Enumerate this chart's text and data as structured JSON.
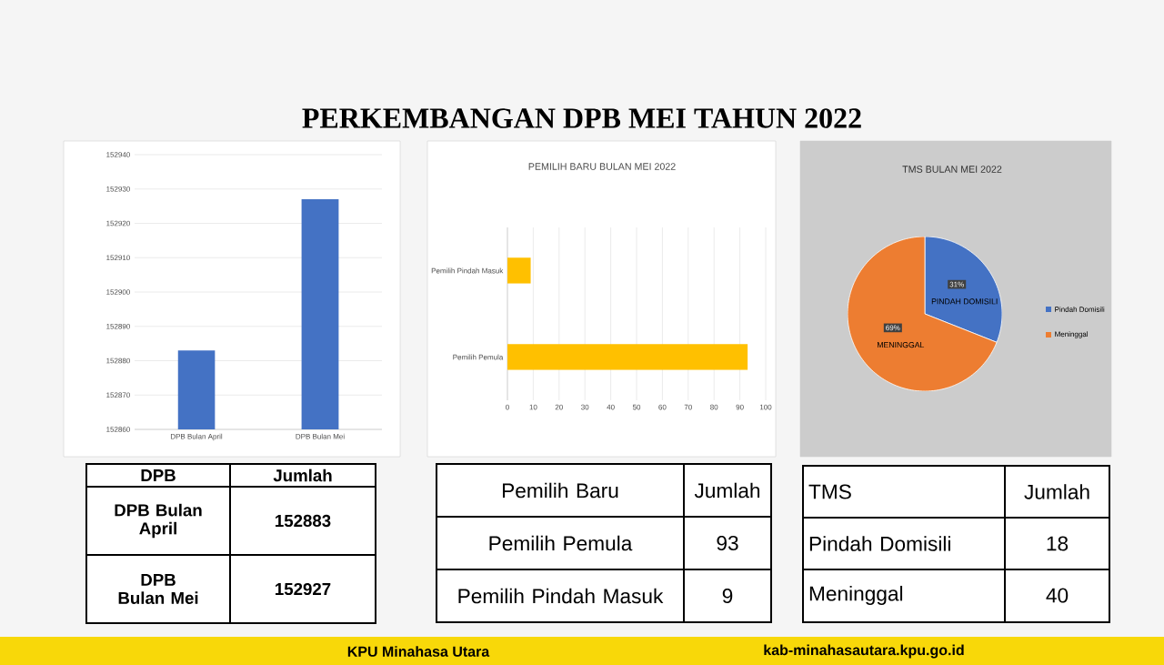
{
  "chart_data": [
    {
      "type": "bar",
      "title": "PERKEMBANGAN DPB MEI TAHUN 2022",
      "categories": [
        "DPB Bulan April",
        "DPB Bulan Mei"
      ],
      "values": [
        152883,
        152927
      ],
      "color": "#4472c4",
      "ylim": [
        152860,
        152940
      ],
      "yticks": [
        152860,
        152870,
        152880,
        152890,
        152900,
        152910,
        152920,
        152930,
        152940
      ],
      "grid": "y",
      "annotations": [
        "KPU Minahasa Utara",
        "kab-minahasautara.kpu.go.id"
      ]
    },
    {
      "type": "bar",
      "orientation": "horizontal",
      "title": "PEMILIH BARU BULAN MEI 2022",
      "categories": [
        "Pemilih Pindah Masuk",
        "Pemilih Pemula"
      ],
      "values": [
        9,
        93
      ],
      "color": "#ffc000",
      "xlim": [
        0,
        100
      ],
      "xticks": [
        0,
        10,
        20,
        30,
        40,
        50,
        60,
        70,
        80,
        90,
        100
      ],
      "grid": "x"
    },
    {
      "type": "pie",
      "title": "TMS BULAN MEI 2022",
      "categories": [
        "Pindah Domisili",
        "Meninggal"
      ],
      "values": [
        31,
        69
      ],
      "colors": [
        "#4472c4",
        "#ed7d31"
      ],
      "value_labels": [
        "31%",
        "69%"
      ],
      "legend": "right",
      "annotations": [
        "PINDAH DOMISILI",
        "MENINGGAL"
      ]
    },
    {
      "type": "other",
      "annotations": [
        "DPB",
        "Jumlah",
        "DPB Bulan April",
        "152883",
        "DPB Bulan Mei",
        "152927"
      ]
    },
    {
      "type": "other",
      "annotations": [
        "Pemilih Baru",
        "Jumlah",
        "Pemilih Pemula",
        "93",
        "Pemilih Pindah Masuk",
        "9"
      ]
    },
    {
      "type": "other",
      "annotations": [
        "TMS",
        "Jumlah",
        "Pindah Domisili",
        "18",
        "Meninggal",
        "40"
      ]
    }
  ]
}
